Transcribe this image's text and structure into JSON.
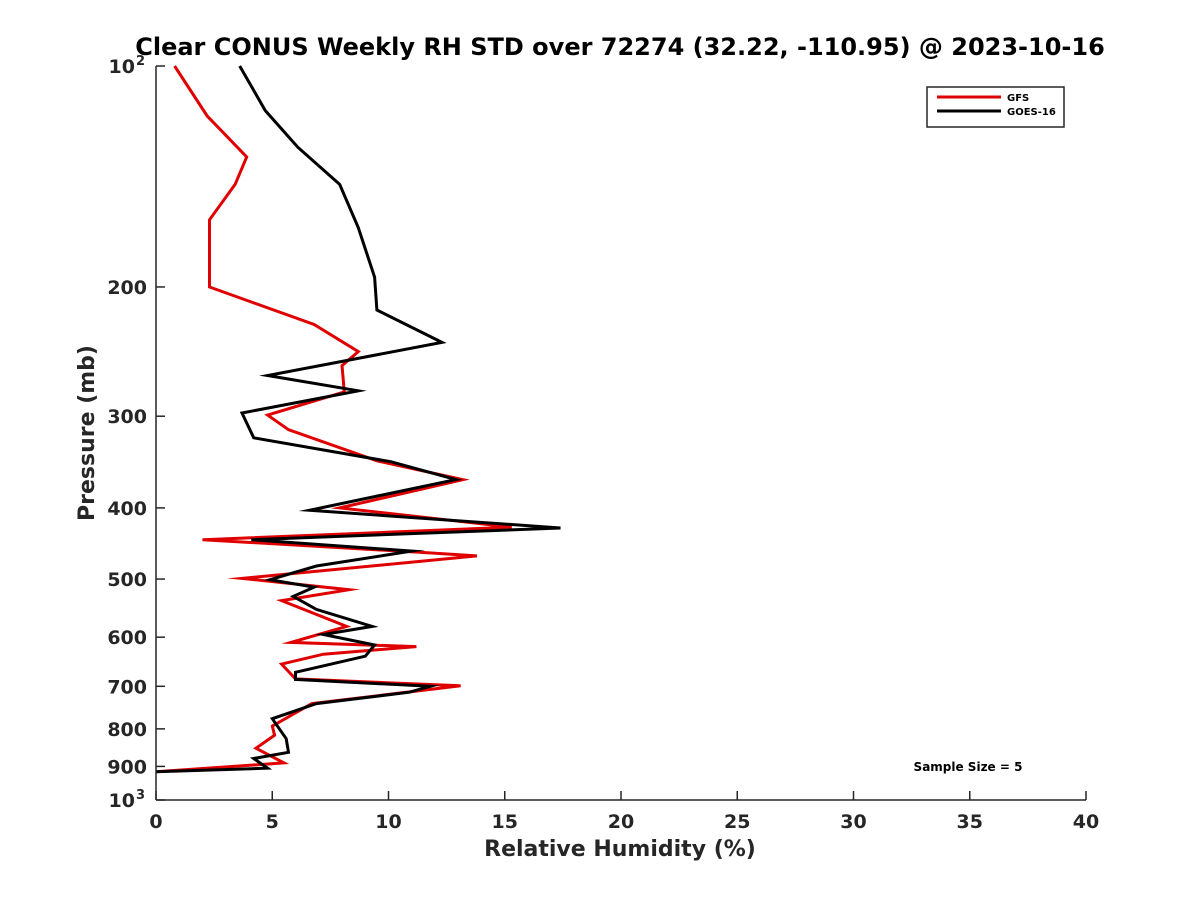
{
  "chart_data": {
    "type": "line",
    "title": "Clear CONUS Weekly RH STD over 72274 (32.22, -110.95) @ 2023-10-16",
    "xlabel": "Relative Humidity (%)",
    "ylabel": "Pressure (mb)",
    "xlim": [
      0,
      40
    ],
    "ylim": [
      100,
      1000
    ],
    "y_scale": "log",
    "y_reversed": true,
    "grid": false,
    "legend_position": "top-right",
    "x_ticks": [
      "0",
      "5",
      "10",
      "15",
      "20",
      "25",
      "30",
      "35",
      "40"
    ],
    "y_ticks": [
      {
        "value": 100,
        "base": "10",
        "exp": "2"
      },
      {
        "value": 200,
        "label": "200"
      },
      {
        "value": 300,
        "label": "300"
      },
      {
        "value": 400,
        "label": "400"
      },
      {
        "value": 500,
        "label": "500"
      },
      {
        "value": 600,
        "label": "600"
      },
      {
        "value": 700,
        "label": "700"
      },
      {
        "value": 800,
        "label": "800"
      },
      {
        "value": 900,
        "label": "900"
      },
      {
        "value": 1000,
        "base": "10",
        "exp": "3"
      }
    ],
    "annotation": "Sample Size = 5",
    "series": [
      {
        "name": "GFS",
        "color": "#e00000",
        "points": [
          [
            0.8,
            100
          ],
          [
            2.2,
            117
          ],
          [
            3.9,
            133
          ],
          [
            3.4,
            145
          ],
          [
            2.3,
            162
          ],
          [
            2.3,
            200
          ],
          [
            6.8,
            225
          ],
          [
            8.7,
            245
          ],
          [
            8.0,
            256
          ],
          [
            8.1,
            278
          ],
          [
            4.8,
            299
          ],
          [
            5.7,
            313
          ],
          [
            9.5,
            345
          ],
          [
            13.2,
            366
          ],
          [
            7.9,
            400
          ],
          [
            15.3,
            425
          ],
          [
            2.0,
            442
          ],
          [
            11.5,
            460
          ],
          [
            13.8,
            465
          ],
          [
            3.7,
            499
          ],
          [
            8.3,
            517
          ],
          [
            5.4,
            535
          ],
          [
            8.2,
            580
          ],
          [
            5.8,
            610
          ],
          [
            11.2,
            618
          ],
          [
            7.2,
            633
          ],
          [
            5.4,
            653
          ],
          [
            6.0,
            684
          ],
          [
            13.1,
            699
          ],
          [
            6.7,
            739
          ],
          [
            5.0,
            793
          ],
          [
            5.1,
            816
          ],
          [
            4.3,
            850
          ],
          [
            5.5,
            890
          ],
          [
            0.0,
            915
          ]
        ]
      },
      {
        "name": "GOES-16",
        "color": "#000000",
        "points": [
          [
            3.6,
            100
          ],
          [
            4.7,
            115
          ],
          [
            6.1,
            129
          ],
          [
            7.9,
            145
          ],
          [
            8.7,
            166
          ],
          [
            9.4,
            194
          ],
          [
            9.5,
            215
          ],
          [
            12.3,
            238
          ],
          [
            4.8,
            264
          ],
          [
            8.7,
            277
          ],
          [
            3.7,
            297
          ],
          [
            4.2,
            321
          ],
          [
            10.1,
            346
          ],
          [
            12.9,
            366
          ],
          [
            6.6,
            403
          ],
          [
            17.4,
            426
          ],
          [
            4.1,
            442
          ],
          [
            11.0,
            458
          ],
          [
            6.9,
            480
          ],
          [
            4.9,
            501
          ],
          [
            6.8,
            513
          ],
          [
            5.9,
            528
          ],
          [
            6.9,
            550
          ],
          [
            9.3,
            580
          ],
          [
            7.2,
            595
          ],
          [
            9.4,
            615
          ],
          [
            9.0,
            637
          ],
          [
            6.0,
            670
          ],
          [
            6.0,
            685
          ],
          [
            11.8,
            700
          ],
          [
            10.9,
            713
          ],
          [
            6.9,
            739
          ],
          [
            5.0,
            775
          ],
          [
            5.6,
            825
          ],
          [
            5.7,
            861
          ],
          [
            4.2,
            878
          ],
          [
            4.8,
            905
          ],
          [
            0.0,
            915
          ]
        ]
      }
    ]
  }
}
